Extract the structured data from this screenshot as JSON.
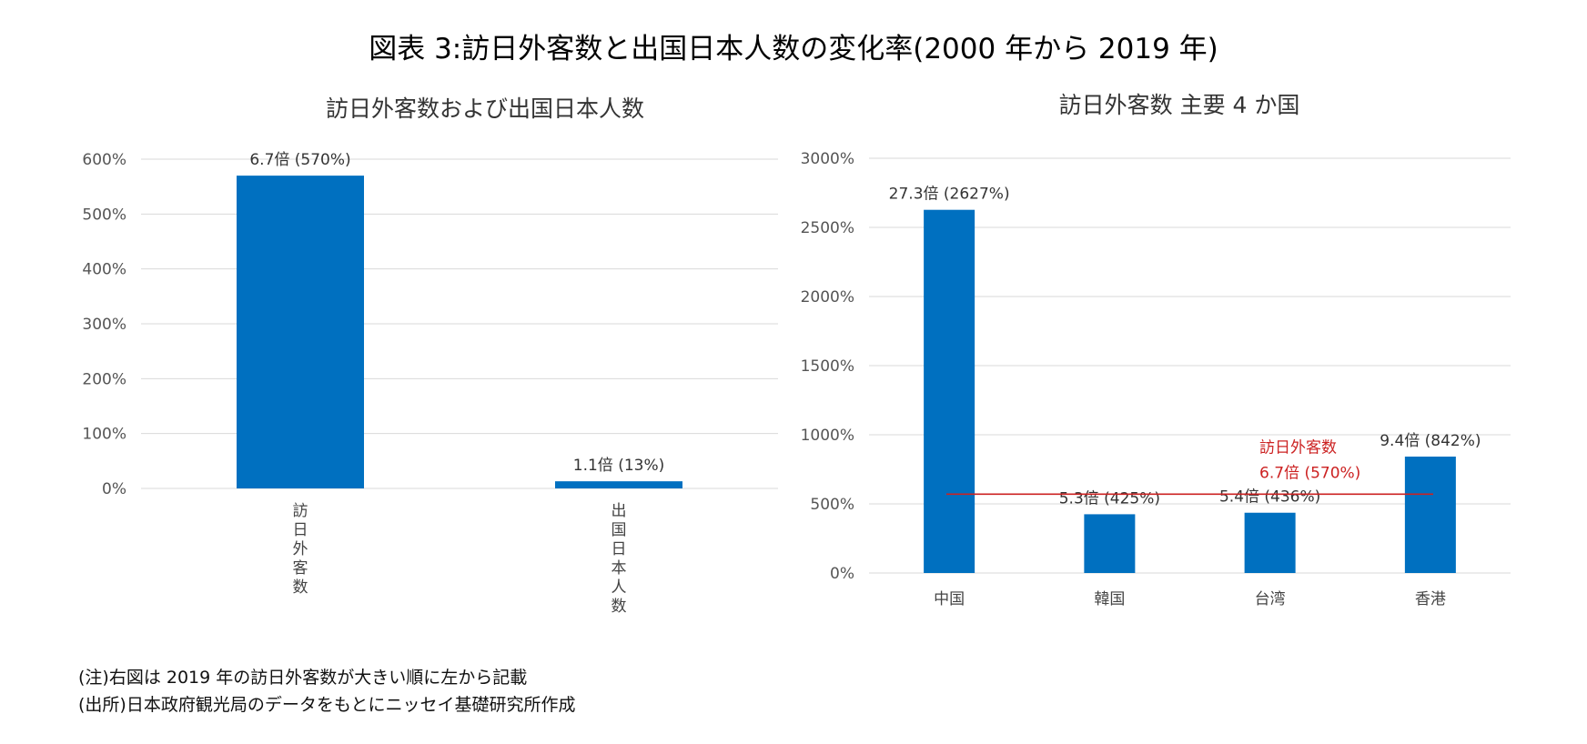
{
  "figure": {
    "title": "図表 3:訪日外客数と出国日本人数の変化率(2000 年から 2019 年)"
  },
  "notes": [
    "(注)右図は 2019 年の訪日外客数が大きい順に左から記載",
    "(出所)日本政府観光局のデータをもとにニッセイ基礎研究所作成"
  ],
  "colors": {
    "bar": "#0070c0",
    "reference_line": "#cc2222",
    "grid": "#d9d9d9"
  },
  "chart_data": [
    {
      "type": "bar",
      "title": "訪日外客数および出国日本人数",
      "categories": [
        "訪日外客数",
        "出国日本人数"
      ],
      "values": [
        570,
        13
      ],
      "data_labels": [
        "6.7倍 (570%)",
        "1.1倍 (13%)"
      ],
      "ylim": [
        0,
        600
      ],
      "yticks": [
        0,
        100,
        200,
        300,
        400,
        500,
        600
      ],
      "ytick_labels": [
        "0%",
        "100%",
        "200%",
        "300%",
        "400%",
        "500%",
        "600%"
      ],
      "category_label_orientation": "vertical",
      "grid": true
    },
    {
      "type": "bar",
      "title": "訪日外客数 主要 4 か国",
      "categories": [
        "中国",
        "韓国",
        "台湾",
        "香港"
      ],
      "values": [
        2627,
        425,
        436,
        842
      ],
      "data_labels": [
        "27.3倍 (2627%)",
        "5.3倍 (425%)",
        "5.4倍 (436%)",
        "9.4倍 (842%)"
      ],
      "ylim": [
        0,
        3000
      ],
      "yticks": [
        0,
        500,
        1000,
        1500,
        2000,
        2500,
        3000
      ],
      "ytick_labels": [
        "0%",
        "500%",
        "1000%",
        "1500%",
        "2000%",
        "2500%",
        "3000%"
      ],
      "reference_line": {
        "value": 570,
        "label_lines": [
          "訪日外客数",
          "6.7倍 (570%)"
        ]
      },
      "grid": true
    }
  ]
}
